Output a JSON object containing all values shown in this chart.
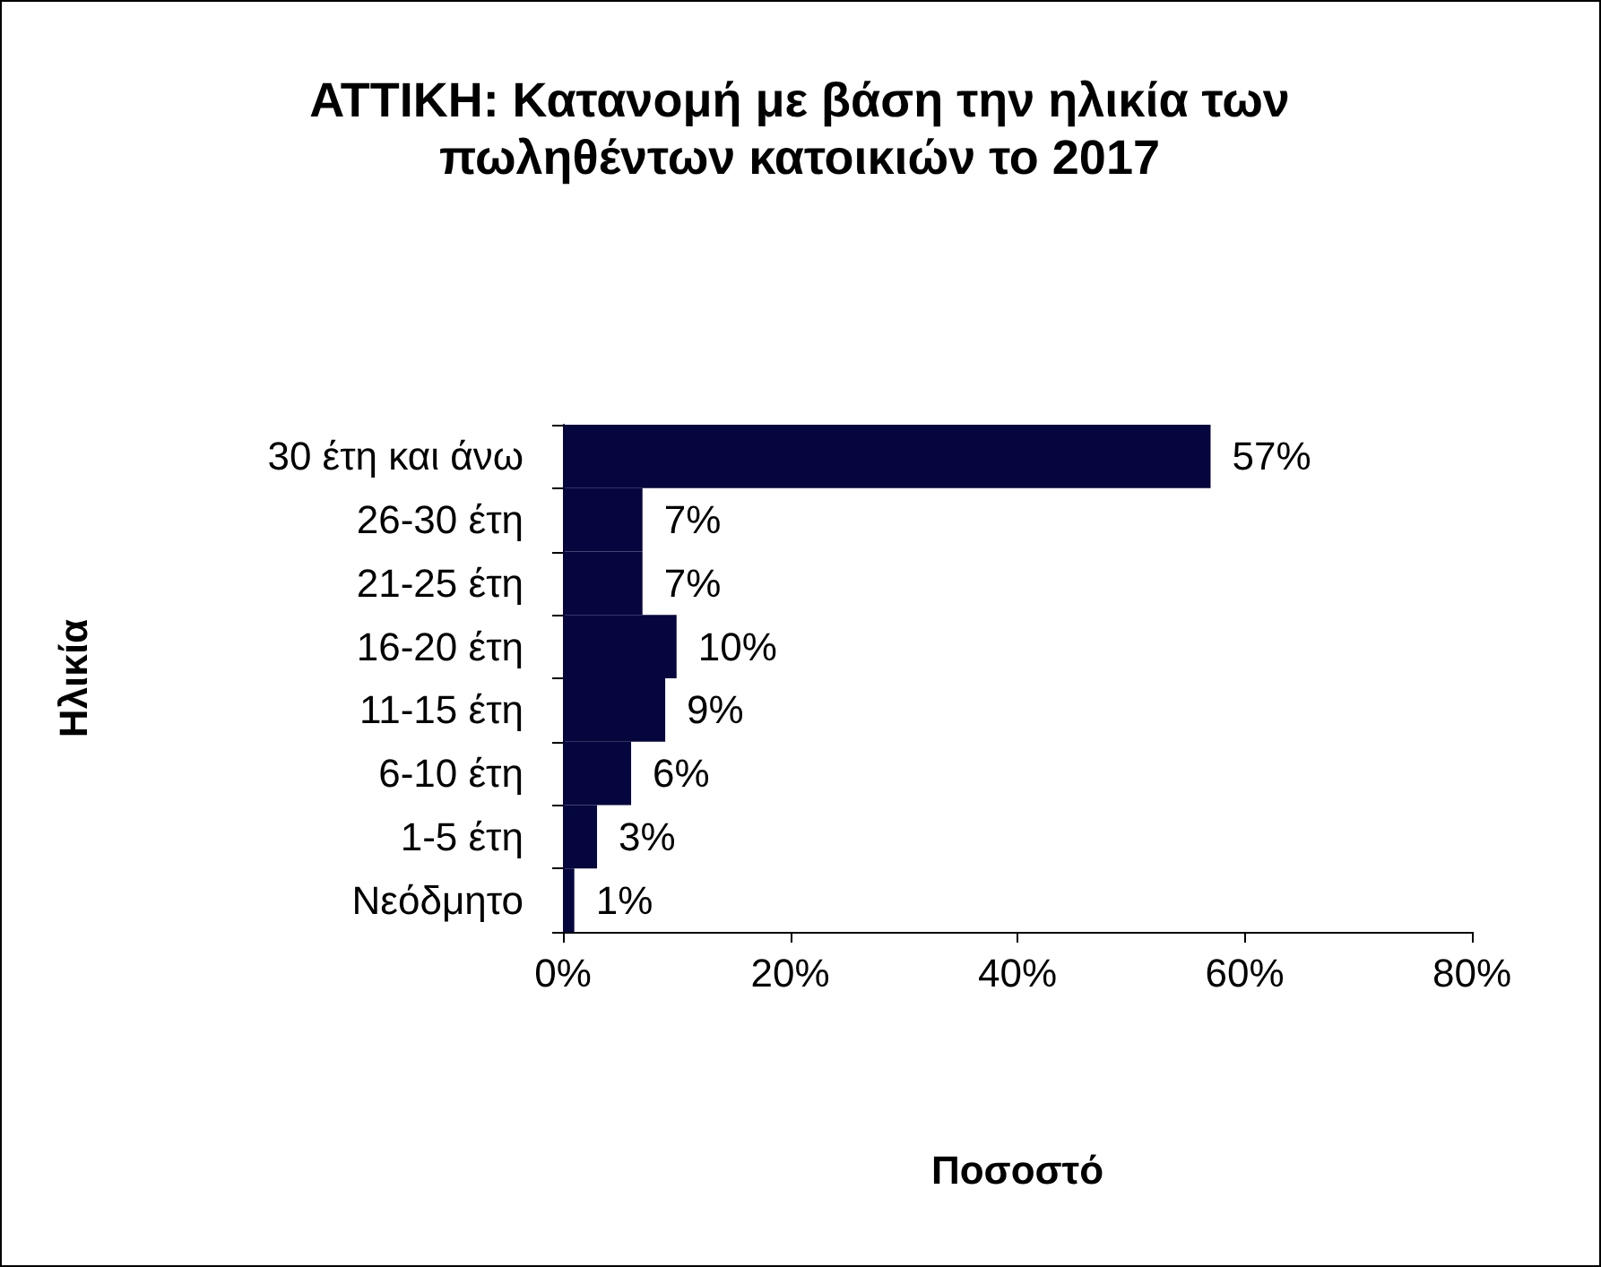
{
  "chart_data": {
    "type": "bar",
    "orientation": "horizontal",
    "title": "ΑΤΤΙΚΗ: Κατανομή με βάση την ηλικία των πωληθέντων κατοικιών το 2017",
    "xlabel": "Ποσοστό",
    "ylabel": "Ηλικία",
    "categories": [
      "30 έτη και άνω",
      "26-30 έτη",
      "21-25 έτη",
      "16-20 έτη",
      "11-15 έτη",
      "6-10 έτη",
      "1-5 έτη",
      "Νεόδμητο"
    ],
    "values": [
      57,
      7,
      7,
      10,
      9,
      6,
      3,
      1
    ],
    "value_labels": [
      "57%",
      "7%",
      "7%",
      "10%",
      "9%",
      "6%",
      "3%",
      "1%"
    ],
    "color": "#06063f",
    "xlim": [
      0,
      80
    ],
    "xticks": [
      {
        "value": 0,
        "label": "0%"
      },
      {
        "value": 20,
        "label": "20%"
      },
      {
        "value": 40,
        "label": "40%"
      },
      {
        "value": 60,
        "label": "60%"
      },
      {
        "value": 80,
        "label": "80%"
      }
    ],
    "grid": false
  }
}
